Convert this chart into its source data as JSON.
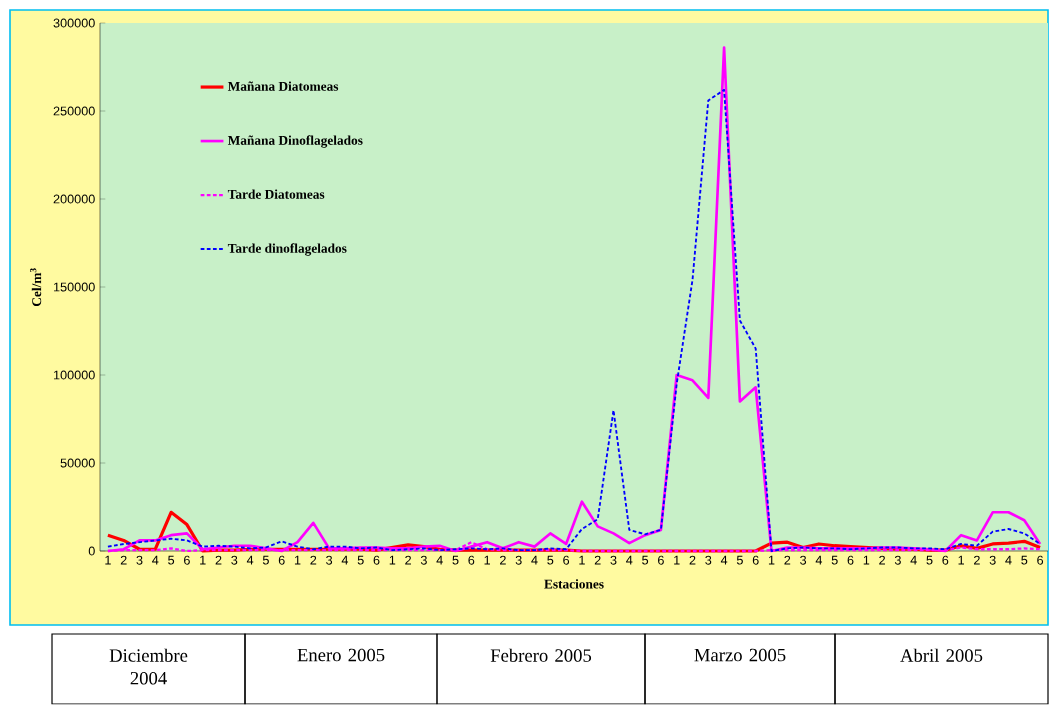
{
  "chart_data": {
    "type": "line",
    "xlabel": "Estaciones",
    "ylabel": "Cel/m$^{3}$",
    "categories": [
      "1",
      "2",
      "3",
      "4",
      "5",
      "6",
      "1",
      "2",
      "3",
      "4",
      "5",
      "6",
      "1",
      "2",
      "3",
      "4",
      "5",
      "6",
      "1",
      "2",
      "3",
      "4",
      "5",
      "6",
      "1",
      "2",
      "3",
      "4",
      "5",
      "6",
      "1",
      "2",
      "3",
      "4",
      "5",
      "6",
      "1",
      "2",
      "3",
      "4",
      "5",
      "6",
      "1",
      "2",
      "3",
      "4",
      "5",
      "6",
      "1",
      "2",
      "3",
      "4",
      "5",
      "6",
      "1",
      "2",
      "3",
      "4",
      "5",
      "6"
    ],
    "series": [
      {
        "name": "Mañana Diatomeas",
        "color": "#ff0000",
        "line_style": "solid",
        "values": [
          9000,
          6000,
          1000,
          1000,
          22000,
          15000,
          0,
          500,
          500,
          1000,
          1000,
          1000,
          1000,
          1000,
          1000,
          1000,
          1000,
          500,
          2000,
          3500,
          2500,
          1000,
          500,
          500,
          500,
          500,
          500,
          500,
          500,
          500,
          0,
          0,
          0,
          0,
          0,
          0,
          0,
          0,
          0,
          0,
          0,
          0,
          4500,
          5000,
          2000,
          4000,
          3000,
          2500,
          2000,
          1500,
          1000,
          1000,
          500,
          500,
          3000,
          1500,
          4000,
          4500,
          5500,
          2000
        ]
      },
      {
        "name": "Mañana Dinoflagelados",
        "color": "#ff00ff",
        "line_style": "solid",
        "values": [
          0,
          1000,
          6000,
          6000,
          9000,
          10000,
          1000,
          2000,
          3000,
          3000,
          1500,
          0,
          5000,
          16000,
          1500,
          1500,
          2000,
          2000,
          1500,
          1500,
          2500,
          3000,
          0,
          2500,
          5000,
          1500,
          5000,
          2500,
          10000,
          4000,
          28000,
          14000,
          10000,
          4500,
          9000,
          12000,
          100000,
          97000,
          87000,
          286000,
          85000,
          93000,
          0,
          2000,
          2000,
          1500,
          1500,
          1500,
          1500,
          2000,
          2000,
          1500,
          1000,
          0,
          9000,
          6000,
          22000,
          22000,
          17500,
          4000
        ]
      },
      {
        "name": "Tarde Diatomeas",
        "color": "#ff00ff",
        "line_style": "dotted",
        "values": [
          0,
          500,
          500,
          500,
          1500,
          0,
          500,
          500,
          500,
          500,
          500,
          500,
          500,
          500,
          500,
          500,
          500,
          500,
          500,
          500,
          500,
          500,
          500,
          5000,
          1000,
          500,
          500,
          500,
          500,
          500,
          0,
          0,
          0,
          0,
          0,
          0,
          0,
          0,
          0,
          0,
          0,
          0,
          500,
          500,
          500,
          500,
          500,
          500,
          500,
          500,
          500,
          500,
          500,
          500,
          2000,
          1000,
          1000,
          1000,
          1500,
          1000
        ]
      },
      {
        "name": "Tarde dinoflagelados",
        "color": "#0000ff",
        "line_style": "dotted",
        "values": [
          2500,
          4000,
          5000,
          6000,
          7000,
          6000,
          2500,
          3000,
          2500,
          1500,
          2000,
          5500,
          2500,
          1000,
          2500,
          2500,
          1500,
          2000,
          500,
          1000,
          1500,
          500,
          1000,
          1500,
          1000,
          1500,
          500,
          500,
          1500,
          1000,
          12500,
          18000,
          80000,
          12000,
          9500,
          12000,
          95000,
          154000,
          256000,
          262000,
          131000,
          115000,
          0,
          1500,
          2000,
          1500,
          1500,
          1000,
          1500,
          2000,
          2000,
          1500,
          1500,
          1000,
          4000,
          3000,
          11000,
          12500,
          10000,
          4000
        ]
      }
    ],
    "ylim": [
      0,
      300000
    ],
    "yticks": [
      0,
      50000,
      100000,
      150000,
      200000,
      250000,
      300000
    ],
    "legend": "top left",
    "annotations": [
      "Diciembre 2004",
      "Enero 2005",
      "Febrero 2005",
      "Marzo 2005",
      "Abril 2005"
    ]
  }
}
